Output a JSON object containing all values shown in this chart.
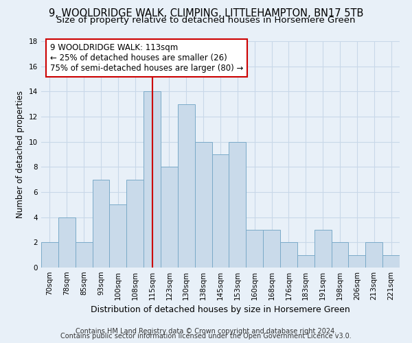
{
  "title": "9, WOOLDRIDGE WALK, CLIMPING, LITTLEHAMPTON, BN17 5TB",
  "subtitle": "Size of property relative to detached houses in Horsemere Green",
  "xlabel": "Distribution of detached houses by size in Horsemere Green",
  "ylabel": "Number of detached properties",
  "footnote1": "Contains HM Land Registry data © Crown copyright and database right 2024.",
  "footnote2": "Contains public sector information licensed under the Open Government Licence v3.0.",
  "bar_labels": [
    "70sqm",
    "78sqm",
    "85sqm",
    "93sqm",
    "100sqm",
    "108sqm",
    "115sqm",
    "123sqm",
    "130sqm",
    "138sqm",
    "145sqm",
    "153sqm",
    "160sqm",
    "168sqm",
    "176sqm",
    "183sqm",
    "191sqm",
    "198sqm",
    "206sqm",
    "213sqm",
    "221sqm"
  ],
  "bar_values": [
    2,
    4,
    2,
    7,
    5,
    7,
    14,
    8,
    13,
    10,
    9,
    10,
    3,
    3,
    2,
    1,
    3,
    2,
    1,
    2,
    1
  ],
  "bar_color": "#c9daea",
  "bar_edgecolor": "#7aaac8",
  "vline_x": 6,
  "vline_color": "#cc0000",
  "annotation_line1": "9 WOOLDRIDGE WALK: 113sqm",
  "annotation_line2": "← 25% of detached houses are smaller (26)",
  "annotation_line3": "75% of semi-detached houses are larger (80) →",
  "annotation_box_color": "white",
  "annotation_box_edgecolor": "#cc0000",
  "ylim": [
    0,
    18
  ],
  "yticks": [
    0,
    2,
    4,
    6,
    8,
    10,
    12,
    14,
    16,
    18
  ],
  "grid_color": "#c8d8e8",
  "background_color": "#e8f0f8",
  "plot_bg_color": "#e8f0f8",
  "title_fontsize": 10.5,
  "subtitle_fontsize": 9.5,
  "xlabel_fontsize": 9,
  "ylabel_fontsize": 8.5,
  "tick_fontsize": 7.5,
  "annotation_fontsize": 8.5,
  "footnote_fontsize": 7
}
